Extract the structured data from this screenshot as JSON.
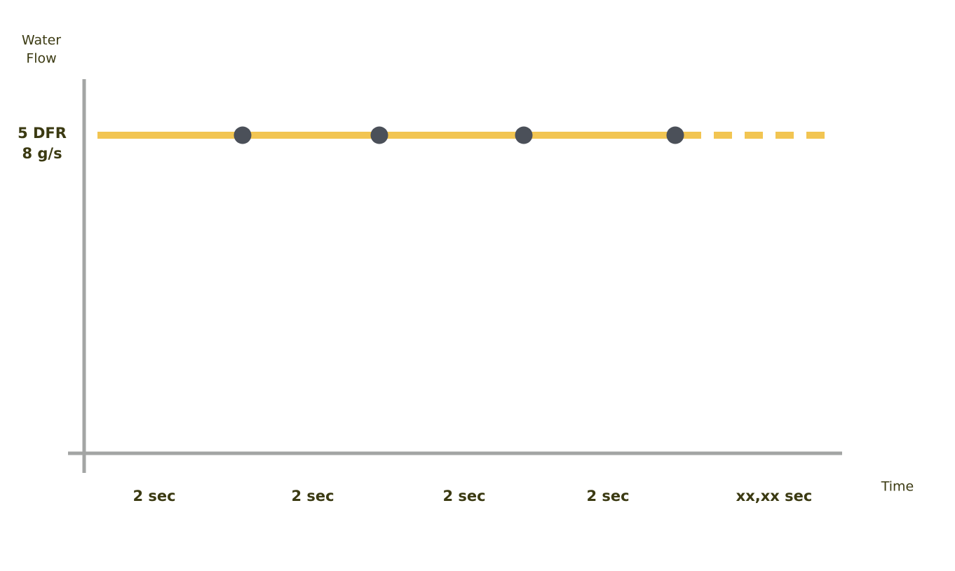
{
  "y_axis": {
    "label_lines": [
      "Water",
      "Flow"
    ]
  },
  "level": {
    "lines": [
      "5 DFR",
      "8 g/s"
    ]
  },
  "x_axis": {
    "label": "Time",
    "segments": [
      "2 sec",
      "2 sec",
      "2 sec",
      "2 sec",
      "xx,xx sec"
    ]
  }
}
